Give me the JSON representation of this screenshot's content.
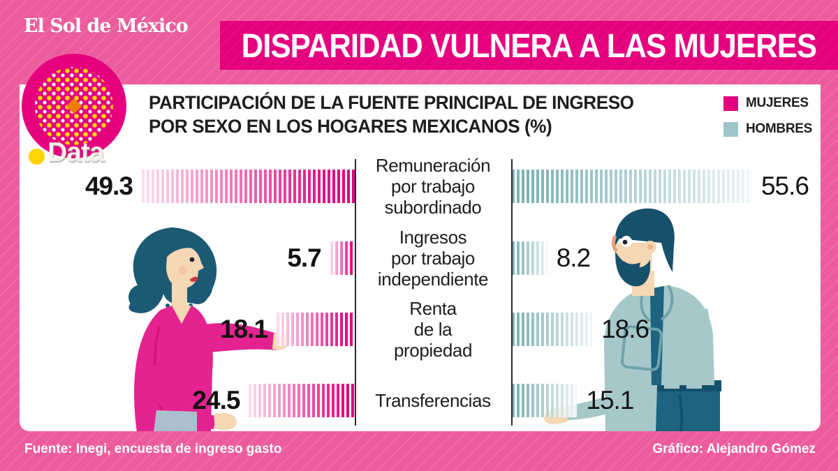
{
  "masthead": {
    "newspaper": "El Sol de México",
    "brand": "Data"
  },
  "banner": {
    "title": "DISPARIDAD VULNERA A LAS MUJERES"
  },
  "subtitle": {
    "line1": "PARTICIPACIÓN DE LA FUENTE PRINCIPAL DE INGRESO",
    "line2": "POR SEXO EN LOS HOGARES MEXICANOS (%)"
  },
  "legend": [
    {
      "label": "MUJERES",
      "color": "#E5007D"
    },
    {
      "label": "HOMBRES",
      "color": "#9CC6C9"
    }
  ],
  "chart_data": {
    "type": "bar",
    "variant": "diverging-striped-tornado",
    "title": "PARTICIPACIÓN DE LA FUENTE PRINCIPAL DE INGRESO POR SEXO EN LOS HOGARES MEXICANOS (%)",
    "unit": "%",
    "categories": [
      "Remuneración por trabajo subordinado",
      "Ingresos por trabajo independiente",
      "Renta de la propiedad",
      "Transferencias"
    ],
    "category_lines": [
      [
        "Remuneración",
        "por trabajo",
        "subordinado"
      ],
      [
        "Ingresos",
        "por trabajo",
        "independiente"
      ],
      [
        "Renta",
        "de la",
        "propiedad"
      ],
      [
        "Transferencias"
      ]
    ],
    "series": [
      {
        "name": "MUJERES",
        "color": "#E5007D",
        "values": [
          49.3,
          5.7,
          18.1,
          24.5
        ]
      },
      {
        "name": "HOMBRES",
        "color": "#7FB3B8",
        "values": [
          55.6,
          8.2,
          18.6,
          15.1
        ]
      }
    ],
    "xmax": 60,
    "grid": false,
    "legend_position": "top-right",
    "value_labels": "outside-ends"
  },
  "footer": {
    "source": "Fuente: Inegi, encuesta de ingreso gasto",
    "credit": "Gráfico: Alejandro Gómez"
  }
}
